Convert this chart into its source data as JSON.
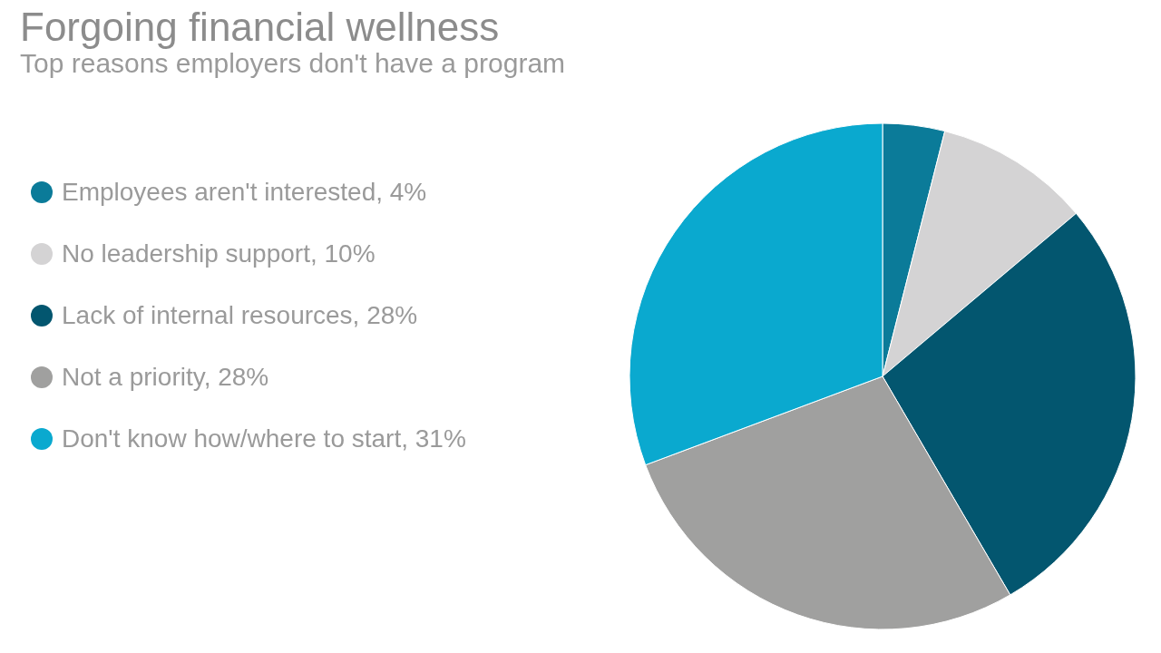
{
  "chart_data": {
    "type": "pie",
    "title": "Forgoing financial wellness",
    "subtitle": "Top reasons employers don't have a program",
    "categories": [
      "Employees aren't interested, 4%",
      "No leadership support, 10%",
      "Lack of internal resources, 28%",
      "Not a priority, 28%",
      "Don't know how/where to start, 31%"
    ],
    "values": [
      4,
      10,
      28,
      28,
      31
    ],
    "colors": [
      "#0b7b99",
      "#d4d3d4",
      "#03566f",
      "#a0a09f",
      "#0aa9cf"
    ],
    "legend": "left"
  }
}
